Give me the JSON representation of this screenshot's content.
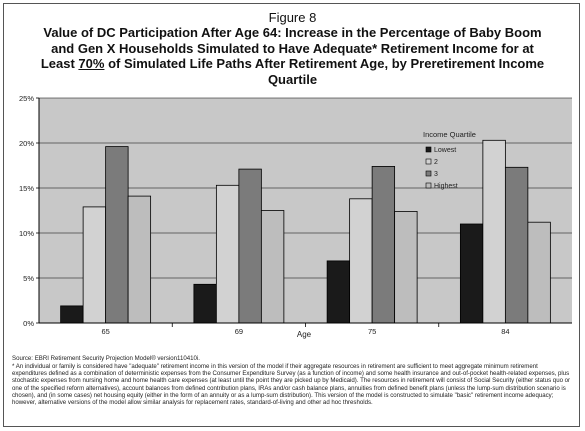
{
  "figure_label": "Figure 8",
  "title": {
    "before": "Value of DC Participation After Age 64: Increase in the Percentage of Baby Boom and Gen X Households Simulated to Have Adequate* Retirement Income for at Least ",
    "underlined": "70%",
    "after": " of Simulated Life Paths After Retirement Age, by Preretirement Income Quartile"
  },
  "chart_data": {
    "type": "bar",
    "categories": [
      "65",
      "69",
      "75",
      "84"
    ],
    "xlabel": "Age",
    "ylabel": "",
    "ylim": [
      0,
      25
    ],
    "yticks": [
      "0%",
      "5%",
      "10%",
      "15%",
      "20%",
      "25%"
    ],
    "grid": "horizontal",
    "legend_title": "Income Quartile",
    "legend_placement": "top-right",
    "series": [
      {
        "name": "Lowest",
        "color": "#1a1a1a",
        "values": [
          1.9,
          4.3,
          6.9,
          11.0
        ]
      },
      {
        "name": "2",
        "color": "#d2d2d2",
        "values": [
          12.9,
          15.3,
          13.8,
          20.3
        ]
      },
      {
        "name": "3",
        "color": "#7b7b7b",
        "values": [
          19.6,
          17.1,
          17.4,
          17.3
        ]
      },
      {
        "name": "Highest",
        "color": "#bdbdbd",
        "values": [
          14.1,
          12.5,
          12.4,
          11.2
        ]
      }
    ],
    "plot_background": "#c8c8c8"
  },
  "source": "Source: EBRI Retirement Security Projection Model® version110410i.",
  "footnote": "* An individual or family is considered have \"adequate\" retirement income in this version of the model if their aggregate resources in retirement are sufficient to meet aggregate minimum retirement expenditures defined as a combination of deterministic expenses from the Consumer Expenditure Survey (as a function of income) and some health insurance and out-of-pocket health-related expenses, plus stochastic expenses from nursing home and home health care expenses (at least until the point they are picked up by Medicaid). The resources in retirement will consist of Social Security (either status quo or one of the specified reform alternatives), account balances from defined contribution plans, IRAs and/or cash balance plans, annuities from defined benefit plans (unless the lump-sum distribution scenario is chosen), and (in some cases) net housing equity (either in the form of an annuity or as a lump-sum distribution). This version of the model is constructed to simulate \"basic\" retirement income adequacy; however, alternative versions of the model allow similar analysis for replacement rates, standard-of-living and other ad hoc thresholds."
}
